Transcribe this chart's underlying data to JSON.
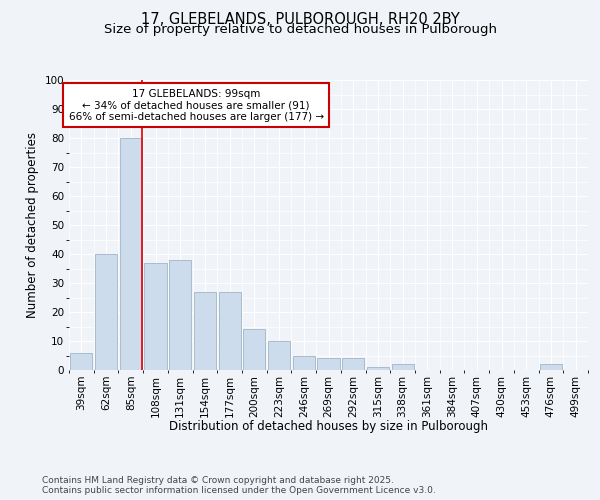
{
  "title_line1": "17, GLEBELANDS, PULBOROUGH, RH20 2BY",
  "title_line2": "Size of property relative to detached houses in Pulborough",
  "xlabel": "Distribution of detached houses by size in Pulborough",
  "ylabel": "Number of detached properties",
  "categories": [
    "39sqm",
    "62sqm",
    "85sqm",
    "108sqm",
    "131sqm",
    "154sqm",
    "177sqm",
    "200sqm",
    "223sqm",
    "246sqm",
    "269sqm",
    "292sqm",
    "315sqm",
    "338sqm",
    "361sqm",
    "384sqm",
    "407sqm",
    "430sqm",
    "453sqm",
    "476sqm",
    "499sqm"
  ],
  "values": [
    6,
    40,
    80,
    37,
    38,
    27,
    27,
    14,
    10,
    5,
    4,
    4,
    1,
    2,
    0,
    0,
    0,
    0,
    0,
    2,
    0
  ],
  "bar_color": "#ccdcec",
  "bar_edge_color": "#aabbcc",
  "vline_x": 2,
  "vline_color": "#dd0000",
  "annotation_text": "17 GLEBELANDS: 99sqm\n← 34% of detached houses are smaller (91)\n66% of semi-detached houses are larger (177) →",
  "annotation_box_color": "#ffffff",
  "annotation_box_edge": "#cc0000",
  "ylim": [
    0,
    100
  ],
  "yticks": [
    0,
    10,
    20,
    30,
    40,
    50,
    60,
    70,
    80,
    90,
    100
  ],
  "bg_color": "#f0f4f8",
  "plot_bg_color": "#f0f4f8",
  "grid_color": "#ffffff",
  "footer": "Contains HM Land Registry data © Crown copyright and database right 2025.\nContains public sector information licensed under the Open Government Licence v3.0.",
  "title_fontsize": 10.5,
  "subtitle_fontsize": 9.5,
  "axis_label_fontsize": 8.5,
  "tick_fontsize": 7.5,
  "annotation_fontsize": 7.5,
  "footer_fontsize": 6.5
}
